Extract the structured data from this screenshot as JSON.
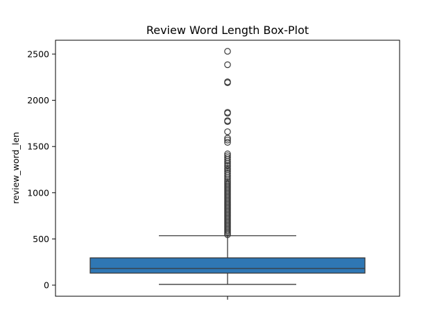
{
  "chart_data": {
    "type": "box",
    "title": "Review Word Length Box-Plot",
    "xlabel": "",
    "ylabel": "review_word_len",
    "ylim": [
      -120,
      2650
    ],
    "yticks": [
      0,
      500,
      1000,
      1500,
      2000,
      2500
    ],
    "ytick_labels": [
      "0",
      "500",
      "1000",
      "1500",
      "2000",
      "2500"
    ],
    "grid": false,
    "box": {
      "whisker_low": 8,
      "q1": 130,
      "median": 180,
      "q3": 295,
      "whisker_high": 535,
      "fill_color": "#2f77b4",
      "line_color": "#3a3a3a"
    },
    "outliers": [
      545,
      560,
      575,
      590,
      605,
      620,
      635,
      650,
      665,
      680,
      695,
      710,
      725,
      740,
      755,
      770,
      785,
      800,
      815,
      830,
      845,
      860,
      875,
      890,
      905,
      920,
      935,
      950,
      965,
      980,
      995,
      1010,
      1025,
      1040,
      1055,
      1070,
      1085,
      1100,
      1115,
      1130,
      1150,
      1170,
      1190,
      1210,
      1230,
      1250,
      1265,
      1285,
      1300,
      1320,
      1340,
      1360,
      1380,
      1400,
      1420,
      1545,
      1570,
      1590,
      1660,
      1770,
      1780,
      1860,
      1870,
      2190,
      2200,
      2385,
      2530
    ]
  }
}
